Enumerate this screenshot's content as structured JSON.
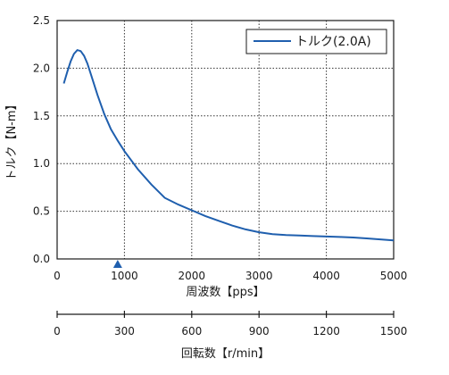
{
  "chart_data": {
    "type": "line",
    "ylabel": "トルク【N-m】",
    "xlabel": "周波数【pps】",
    "xlabel2": "回転数【r/min】",
    "xlim": [
      0,
      5000
    ],
    "ylim": [
      0,
      2.5
    ],
    "xticks": [
      1000,
      2000,
      3000,
      4000,
      5000
    ],
    "yticks": [
      0.0,
      0.5,
      1.0,
      1.5,
      2.0,
      2.5
    ],
    "ytick_labels": [
      "0.0",
      "0.5",
      "1.0",
      "1.5",
      "2.0",
      "2.5"
    ],
    "x_origin_label": "0",
    "x2_ticks": [
      0,
      300,
      600,
      900,
      1200,
      1500
    ],
    "x2_lim": [
      0,
      1500
    ],
    "marker_x": 900,
    "grid": true,
    "legend_position": "top-right",
    "series": [
      {
        "name": "トルク(2.0A)",
        "color": "#1f5fae",
        "x": [
          100,
          150,
          200,
          250,
          300,
          350,
          400,
          450,
          500,
          600,
          700,
          800,
          900,
          1000,
          1200,
          1400,
          1600,
          1800,
          2000,
          2200,
          2400,
          2600,
          2800,
          3000,
          3200,
          3400,
          3600,
          3800,
          4000,
          4200,
          4400,
          4600,
          4800,
          5000
        ],
        "y": [
          1.84,
          1.96,
          2.07,
          2.15,
          2.19,
          2.18,
          2.13,
          2.05,
          1.94,
          1.72,
          1.52,
          1.36,
          1.24,
          1.13,
          0.94,
          0.78,
          0.64,
          0.57,
          0.51,
          0.45,
          0.4,
          0.35,
          0.31,
          0.28,
          0.26,
          0.25,
          0.245,
          0.24,
          0.235,
          0.23,
          0.225,
          0.215,
          0.205,
          0.195
        ]
      }
    ]
  }
}
